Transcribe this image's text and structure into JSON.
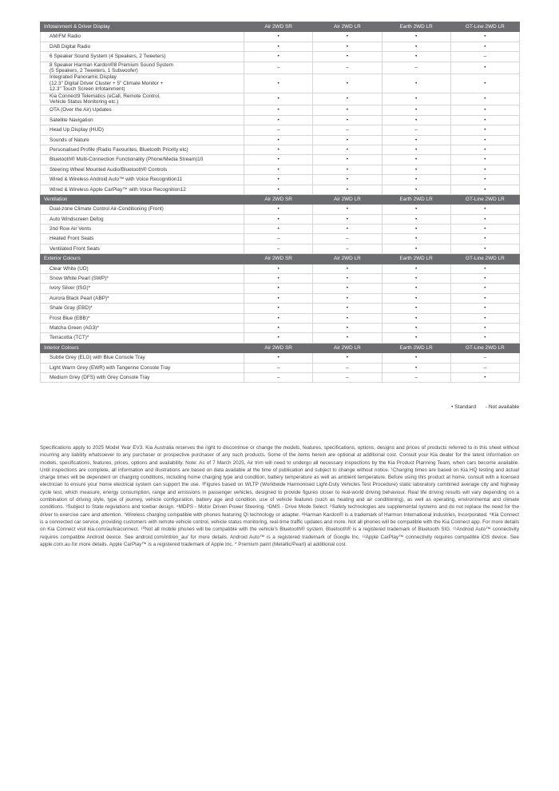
{
  "columns": [
    "Air 2WD SR",
    "Air 2WD LR",
    "Earth 2WD LR",
    "GT-Line 2WD LR"
  ],
  "sections": [
    {
      "title": "Infotainment & Driver Display",
      "rows": [
        {
          "label": "AM/FM Radio",
          "values": [
            "•",
            "•",
            "•",
            "•"
          ]
        },
        {
          "label": "DAB Digital Radio",
          "values": [
            "•",
            "•",
            "•",
            "•"
          ]
        },
        {
          "label": "6 Speaker Sound System (4 Speakers, 2 Tweeters)",
          "values": [
            "•",
            "•",
            "•",
            "–"
          ]
        },
        {
          "label": "8 Speaker Harman Kardon®8 Premium Sound System\n(5 Speakers, 2 Tweeters, 1 Subwoofer)",
          "values": [
            "–",
            "–",
            "–",
            "•"
          ]
        },
        {
          "label": "Integrated Panoramic Display\n(12.3\" Digital Driver Cluster + 5\" Climate Monitor +\n12.3\" Touch Screen Infotainment)",
          "values": [
            "•",
            "•",
            "•",
            "•"
          ]
        },
        {
          "label": "Kia Connect9 Telematics (eCall, Remote Control,\nVehicle Status Monitoring etc.)",
          "values": [
            "•",
            "•",
            "•",
            "•"
          ]
        },
        {
          "label": "OTA (Over the Air) Updates",
          "values": [
            "•",
            "•",
            "•",
            "•"
          ]
        },
        {
          "label": "Satellite Navigation",
          "values": [
            "•",
            "•",
            "•",
            "•"
          ]
        },
        {
          "label": "Head Up Display (HUD)",
          "values": [
            "–",
            "–",
            "–",
            "•"
          ]
        },
        {
          "label": "Sounds of Nature",
          "values": [
            "•",
            "•",
            "•",
            "•"
          ]
        },
        {
          "label": "Personalised Profile (Radio Favourites, Bluetooth Priority etc)",
          "values": [
            "•",
            "•",
            "•",
            "•"
          ]
        },
        {
          "label": "Bluetooth® Multi-Connection Functionality (Phone/Media Stream)10",
          "values": [
            "•",
            "•",
            "•",
            "•"
          ]
        },
        {
          "label": "Steering Wheel Mounted Audio/Bluetooth® Controls",
          "values": [
            "•",
            "•",
            "•",
            "•"
          ]
        },
        {
          "label": "Wired & Wireless Android Auto™ with Voice Recognition11",
          "values": [
            "•",
            "•",
            "•",
            "•"
          ]
        },
        {
          "label": "Wired & Wireless Apple CarPlay™ with Voice Recognition12",
          "values": [
            "•",
            "•",
            "•",
            "•"
          ]
        }
      ]
    },
    {
      "title": "Ventilation",
      "rows": [
        {
          "label": "Dual-zone Climate Control Air-Conditioning (Front)",
          "values": [
            "•",
            "•",
            "•",
            "•"
          ]
        },
        {
          "label": "Auto Windscreen Defog",
          "values": [
            "•",
            "•",
            "•",
            "•"
          ]
        },
        {
          "label": "2nd Row Air Vents",
          "values": [
            "•",
            "•",
            "•",
            "•"
          ]
        },
        {
          "label": "Heated Front Seats",
          "values": [
            "–",
            "–",
            "•",
            "•"
          ]
        },
        {
          "label": "Ventilated Front Seats",
          "values": [
            "–",
            "–",
            "•",
            "•"
          ]
        }
      ]
    },
    {
      "title": "Exterior Colours",
      "rows": [
        {
          "label": "Clear White (UD)",
          "values": [
            "•",
            "•",
            "•",
            "•"
          ]
        },
        {
          "label": "Snow White Pearl (SWP)*",
          "values": [
            "•",
            "•",
            "•",
            "•"
          ]
        },
        {
          "label": "Ivory Silver (ISG)*",
          "values": [
            "•",
            "•",
            "•",
            "•"
          ]
        },
        {
          "label": "Aurora Black Pearl (ABP)*",
          "values": [
            "•",
            "•",
            "•",
            "•"
          ]
        },
        {
          "label": "Shale Gray (EBD)*",
          "values": [
            "•",
            "•",
            "•",
            "•"
          ]
        },
        {
          "label": "Frost Blue (EBB)*",
          "values": [
            "•",
            "•",
            "•",
            "•"
          ]
        },
        {
          "label": "Matcha Green (AG3)*",
          "values": [
            "•",
            "•",
            "•",
            "•"
          ]
        },
        {
          "label": "Terracotta (TCT)*",
          "values": [
            "•",
            "•",
            "•",
            "•"
          ]
        }
      ]
    },
    {
      "title": "Interior Colours",
      "rows": [
        {
          "label": "Subtle Grey (ELG) with Blue Console Tray",
          "values": [
            "•",
            "•",
            "•",
            "–"
          ]
        },
        {
          "label": "Light Warm Grey (EWR) with Tangerine Console Tray",
          "values": [
            "–",
            "–",
            "•",
            "–"
          ]
        },
        {
          "label": "Medium Grey (DFS) with Grey Console Tray",
          "values": [
            "–",
            "–",
            "–",
            "•"
          ]
        }
      ]
    }
  ],
  "legend": {
    "standard": "• Standard",
    "not_available": "- Not available"
  },
  "footnote": "Specifications apply to 2025 Model Year EV3. Kia Australia reserves the right to discontinue or change the models, features, specifications, options, designs and prices of products referred to in this sheet without incurring any liability whatsoever to any purchaser or prospective purchaser of any such products. Some of the items herein are optional at additional cost. Consult your Kia dealer for the latest information on models, specifications, features, prices, options and availability. Note: As of 7 March 2025, Air trim will need to undergo all necessary inspections by the Kia Product Planning Team, when cars become available. Until inspections are complete, all information and illustrations are based on data available at the time of publication and subject to change without notice. ¹Charging times are based on Kia HQ testing and actual charge times will be dependent on charging conditions, including home charging type and condition, battery temperature as well as ambient temperature. Before using this product at home, consult with a licensed electrician to ensure your home electrical system can support the use. ²Figures based on WLTP (Worldwide Harmonised Light-Duty Vehicles Test Procedure) static laboratory combined average city and highway cycle test, which measure, energy consumption, range and emissions in passenger vehicles, designed to provide figures closer to real-world driving behaviour. Real life driving results will vary depending on a combination of driving style, type of journey, vehicle configuration, battery age and condition, use of vehicle features (such as heating and air conditioning), as well as operating, environmental and climate conditions. ³Subject to State regulations and towbar design. ⁴MDPS - Motor Driven Power Steering. ⁵DMS - Drive Mode Select. ⁶Safety technologies are supplemental systems and do not replace the need for the driver to exercise care and attention. ⁷Wireless charging compatible with phones featuring Qi technology or adapter. ⁸Harman Kardon® is a trademark of Harmon International Industries, Incorporated. ⁹Kia Connect is a connected car service, providing customers with remote vehicle control, vehicle status monitoring, real-time traffic updates and more. Not all phones will be compatible with the Kia Connect app. For more details on Kia Connect visit kia.com/au/kiaconnect. ¹⁰Not all mobile phones will be compatible with the vehicle's Bluetooth® system. Bluetooth® is a registered trademark of Bluetooth SIG. ¹¹Android Auto™ connectivity requires compatible Android device. See android.com/intl/en_au/ for more details. Android Auto™ is a registered trademark of Google Inc. ¹²Apple CarPlay™ connectivity requires compatible iOS device. See apple.com.au for more details. Apple CarPlay™ is a registered trademark of Apple Inc. * Premium paint (Metallic/Pearl) at additional cost."
}
